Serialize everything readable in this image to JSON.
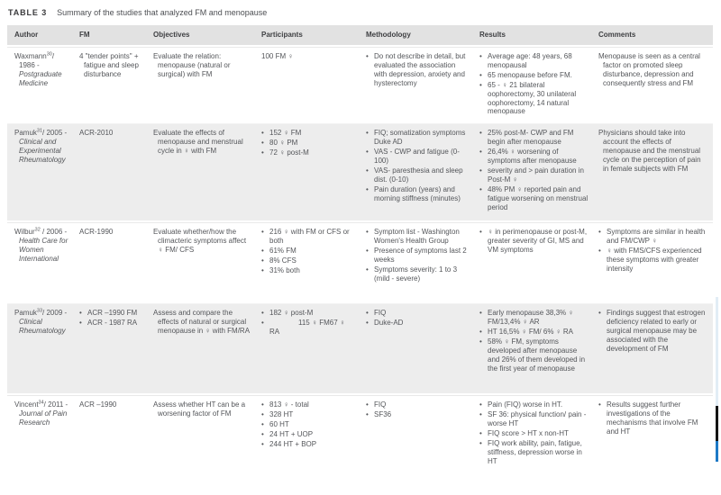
{
  "title": {
    "label": "TABLE 3",
    "text": "Summary of the studies that analyzed FM and menopause"
  },
  "columns": [
    "Author",
    "FM",
    "Objectives",
    "Participants",
    "Methodology",
    "Results",
    "Comments"
  ],
  "colors": {
    "header_bg": "#e2e2e2",
    "zebra_bg": "#ededed",
    "body_text": "#54565a",
    "scrollbar_track": "#e2edf6",
    "scrollbar_thumb": "#141414",
    "scrollbar_accent": "#1d79c6"
  },
  "rows": [
    {
      "zebra": false,
      "author": {
        "name": "Waxmann",
        "sup": "30",
        "after": "/ 1986 - ",
        "journal": "Postgraduate Medicine"
      },
      "fm": [
        {
          "b": false,
          "t": "4 \"tender points\" + fatigue and sleep disturbance"
        }
      ],
      "objectives": [
        {
          "b": false,
          "t": "Evaluate the relation: menopause (natural or surgical) with FM"
        }
      ],
      "participants": [
        {
          "b": false,
          "t": "100 FM ♀"
        }
      ],
      "methodology": [
        {
          "b": true,
          "t": "Do not describe in detail, but evaluated the association with depression, anxiety and hysterectomy"
        }
      ],
      "results": [
        {
          "b": true,
          "t": "Average age: 48 years, 68 menopausal"
        },
        {
          "b": true,
          "t": "65 menopause before FM."
        },
        {
          "b": true,
          "t": "65 - ♀ 21 bilateral oophorectomy, 30 unilateral oophorectomy, 14 natural menopause"
        }
      ],
      "comments": [
        {
          "b": false,
          "t": "Menopause is seen as a central factor on promoted sleep disturbance, depression and consequently stress and FM"
        }
      ]
    },
    {
      "zebra": true,
      "author": {
        "name": "Pamuk",
        "sup": "31",
        "after": "/ 2005 - ",
        "journal": "Clinical and Experimental Rheumatology"
      },
      "fm": [
        {
          "b": false,
          "t": "ACR-2010"
        }
      ],
      "objectives": [
        {
          "b": false,
          "t": "Evaluate the effects of menopause and menstrual cycle in ♀ with FM"
        }
      ],
      "participants": [
        {
          "b": true,
          "t": "152 ♀ FM"
        },
        {
          "b": true,
          "t": "80 ♀ PM"
        },
        {
          "b": true,
          "t": "72 ♀ post-M"
        }
      ],
      "methodology": [
        {
          "b": true,
          "t": "FIQ; somatization symptoms Duke AD"
        },
        {
          "b": true,
          "t": "VAS - CWP and fatigue (0-100)"
        },
        {
          "b": true,
          "t": "VAS- paresthesia and sleep dist. (0-10)"
        },
        {
          "b": true,
          "t": "Pain duration (years) and morning stiffness (minutes)"
        }
      ],
      "results": [
        {
          "b": true,
          "t": "25% post-M- CWP and FM begin after menopause"
        },
        {
          "b": true,
          "t": "26,4% ♀ worsening of symptoms after menopause"
        },
        {
          "b": true,
          "t": "severity and > pain duration in Post-M ♀"
        },
        {
          "b": true,
          "t": "48% PM ♀ reported pain and fatigue worsening on menstrual period"
        }
      ],
      "comments": [
        {
          "b": false,
          "t": "Physicians should take into account the effects of menopause and the menstrual cycle on the perception of pain in female subjects with FM"
        }
      ]
    },
    {
      "zebra": false,
      "author": {
        "name": "Wilbur",
        "sup": "32",
        "after": " / 2006 - ",
        "journal": "Health Care for Women International"
      },
      "fm": [
        {
          "b": false,
          "t": "ACR-1990"
        }
      ],
      "objectives": [
        {
          "b": false,
          "t": "Evaluate whether/how the climacteric symptoms affect ♀ FM/ CFS"
        }
      ],
      "participants": [
        {
          "b": true,
          "t": "216 ♀ with FM or CFS or both"
        },
        {
          "b": true,
          "t": "61% FM"
        },
        {
          "b": true,
          "t": "8% CFS"
        },
        {
          "b": true,
          "t": "31% both"
        }
      ],
      "methodology": [
        {
          "b": true,
          "t": "Symptom list - Washington Women's Health Group"
        },
        {
          "b": true,
          "t": "Presence of symptoms last 2 weeks"
        },
        {
          "b": true,
          "t": "Symptoms severity: 1 to 3 (mild - severe)"
        }
      ],
      "results": [
        {
          "b": true,
          "t": "♀ in perimenopause or post-M, greater severity of GI, MS and VM symptoms"
        }
      ],
      "comments": [
        {
          "b": true,
          "t": "Symptoms are similar in health and FM/CWP ♀"
        },
        {
          "b": true,
          "t": "♀ with FMS/CFS experienced these symptoms with greater intensity"
        }
      ]
    },
    {
      "zebra": true,
      "author": {
        "name": "Pamuk",
        "sup": "33",
        "after": "/ 2009 - ",
        "journal": "Clinical Rheumatology"
      },
      "fm": [
        {
          "b": true,
          "t": "ACR –1990 FM"
        },
        {
          "b": true,
          "t": "ACR - 1987 RA"
        }
      ],
      "objectives": [
        {
          "b": false,
          "t": "Assess and compare the effects of natural or surgical menopause in ♀ with FM/RA"
        }
      ],
      "participants": [
        {
          "b": true,
          "t": "182 ♀ post-M"
        },
        {
          "b": true,
          "t": "115 ♀ FM67 ♀ RA",
          "cls": "gap"
        }
      ],
      "methodology": [
        {
          "b": true,
          "t": "FIQ"
        },
        {
          "b": true,
          "t": "Duke-AD"
        }
      ],
      "results": [
        {
          "b": true,
          "t": "Early menopause 38,3% ♀ FM/13,4% ♀ AR"
        },
        {
          "b": true,
          "t": "HT 16,5% ♀ FM/ 6% ♀ RA"
        },
        {
          "b": true,
          "t": "58% ♀ FM, symptoms developed after menopause and 26% of them developed in the first year of menopause"
        }
      ],
      "comments": [
        {
          "b": true,
          "t": "Findings suggest that estrogen deficiency related to early or surgical menopause may be associated with the development of FM"
        }
      ]
    },
    {
      "zebra": false,
      "author": {
        "name": "Vincent",
        "sup": "34",
        "after": "/ 2011 - ",
        "journal": "Journal of Pain Research"
      },
      "fm": [
        {
          "b": false,
          "t": "ACR –1990"
        }
      ],
      "objectives": [
        {
          "b": false,
          "t": "Assess whether HT can be a worsening factor of FM"
        }
      ],
      "participants": [
        {
          "b": true,
          "t": "813 ♀ - total"
        },
        {
          "b": true,
          "t": "328 HT"
        },
        {
          "b": true,
          "t": "60 HT"
        },
        {
          "b": true,
          "t": "24 HT + UOP"
        },
        {
          "b": true,
          "t": "244 HT + BOP"
        }
      ],
      "methodology": [
        {
          "b": true,
          "t": "FIQ"
        },
        {
          "b": true,
          "t": "SF36"
        }
      ],
      "results": [
        {
          "b": true,
          "t": "Pain (FIQ) worse in HT."
        },
        {
          "b": true,
          "t": "SF 36: physical function/ pain - worse HT"
        },
        {
          "b": true,
          "t": "FIQ score > HT x non-HT"
        },
        {
          "b": true,
          "t": "FIQ work ability, pain, fatigue, stiffness, depression worse in HT"
        }
      ],
      "comments": [
        {
          "b": true,
          "t": "Results suggest further investigations of the mechanisms that involve FM and HT"
        }
      ]
    }
  ]
}
